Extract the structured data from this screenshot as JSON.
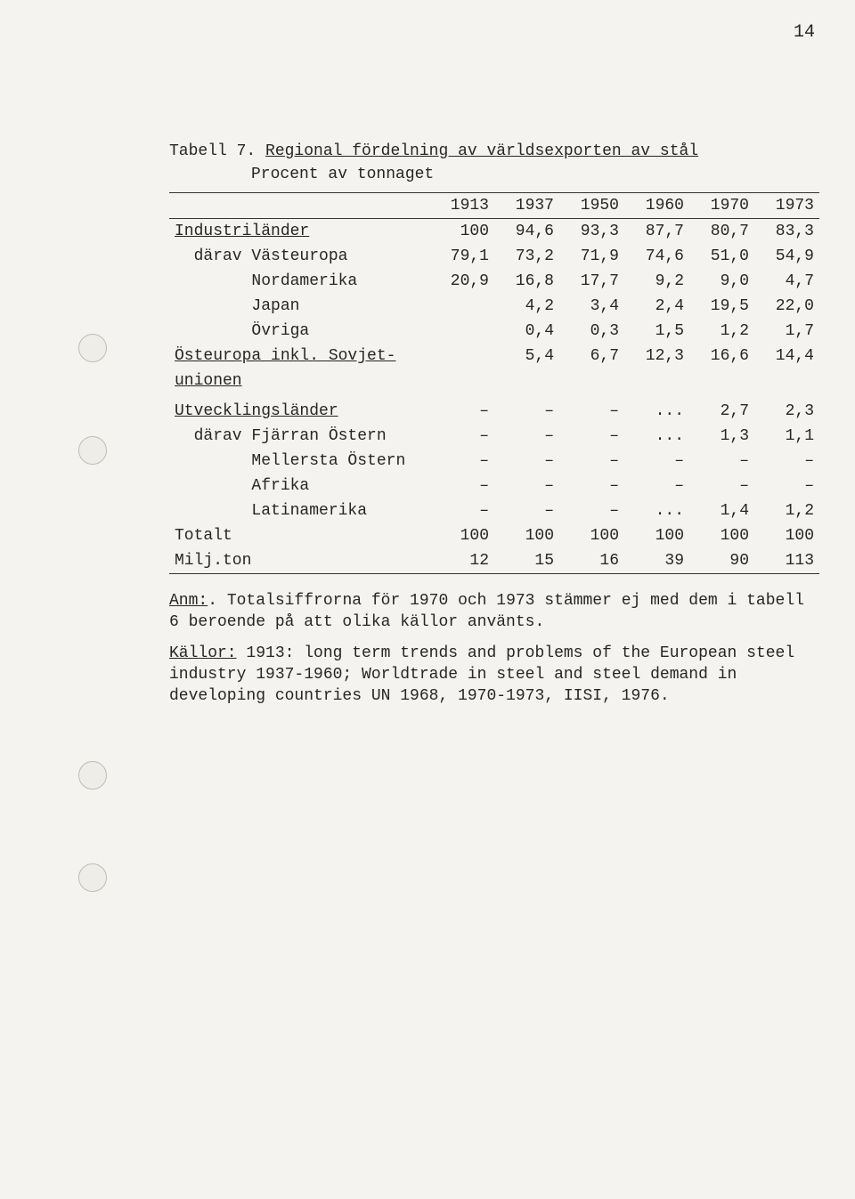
{
  "page_number": "14",
  "caption_prefix": "Tabell 7. ",
  "caption_title": "Regional fördelning av världsexporten av stål",
  "subcaption": "Procent av tonnaget",
  "columns": [
    "1913",
    "1937",
    "1950",
    "1960",
    "1970",
    "1973"
  ],
  "rows": [
    {
      "label": "Industriländer",
      "underline": true,
      "indent": 0,
      "v": [
        "100",
        "94,6",
        "93,3",
        "87,7",
        "80,7",
        "83,3"
      ]
    },
    {
      "label": "därav Västeuropa",
      "underline": false,
      "indent": 1,
      "v": [
        "79,1",
        "73,2",
        "71,9",
        "74,6",
        "51,0",
        "54,9"
      ]
    },
    {
      "label": "Nordamerika",
      "underline": false,
      "indent": 2,
      "v": [
        "20,9",
        "16,8",
        "17,7",
        "9,2",
        "9,0",
        "4,7"
      ]
    },
    {
      "label": "Japan",
      "underline": false,
      "indent": 2,
      "v": [
        "",
        "4,2",
        "3,4",
        "2,4",
        "19,5",
        "22,0"
      ]
    },
    {
      "label": "Övriga",
      "underline": false,
      "indent": 2,
      "v": [
        "",
        "0,4",
        "0,3",
        "1,5",
        "1,2",
        "1,7"
      ]
    }
  ],
  "row_ost_a": "Östeuropa inkl. Sovjet-",
  "row_ost_b": "unionen",
  "row_ost_v": [
    "",
    "5,4",
    "6,7",
    "12,3",
    "16,6",
    "14,4"
  ],
  "rows2": [
    {
      "label": "Utvecklingsländer",
      "underline": true,
      "indent": 0,
      "v": [
        "–",
        "–",
        "–",
        "...",
        "2,7",
        "2,3"
      ]
    },
    {
      "label": "därav Fjärran Östern",
      "underline": false,
      "indent": 1,
      "v": [
        "–",
        "–",
        "–",
        "...",
        "1,3",
        "1,1"
      ]
    },
    {
      "label": "Mellersta Östern",
      "underline": false,
      "indent": 2,
      "v": [
        "–",
        "–",
        "–",
        "–",
        "–",
        "–"
      ]
    },
    {
      "label": "Afrika",
      "underline": false,
      "indent": 2,
      "v": [
        "–",
        "–",
        "–",
        "–",
        "–",
        "–"
      ]
    },
    {
      "label": "Latinamerika",
      "underline": false,
      "indent": 2,
      "v": [
        "–",
        "–",
        "–",
        "...",
        "1,4",
        "1,2"
      ]
    }
  ],
  "total_label_a": "Totalt",
  "total_label_b": "Milj.ton",
  "total_a": [
    "100",
    "100",
    "100",
    "100",
    "100",
    "100"
  ],
  "total_b": [
    "12",
    "15",
    "16",
    "39",
    "90",
    "113"
  ],
  "anm_label": "Anm:",
  "anm_text": ".  Totalsiffrorna för 1970 och 1973 stämmer ej med dem i tabell 6 beroende på att olika källor använts.",
  "kallor_label": "Källor:",
  "kallor_text": "  1913: long term trends and problems of the European steel industry 1937-1960; Worldtrade in steel and steel demand in developing countries UN 1968, 1970-1973, IISI, 1976.",
  "colors": {
    "text": "#262626",
    "bg": "#f5f3ef",
    "rule": "#333333"
  }
}
